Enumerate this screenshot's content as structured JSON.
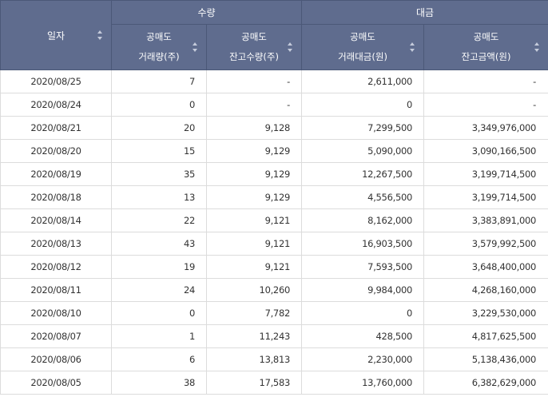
{
  "header": {
    "date_label": "일자",
    "group_qty": "수량",
    "group_amount": "대금",
    "col_volume": [
      "공매도",
      "거래량(주)"
    ],
    "col_balance_qty": [
      "공매도",
      "잔고수량(주)"
    ],
    "col_trade_amount": [
      "공매도",
      "거래대금(원)"
    ],
    "col_balance_amount": [
      "공매도",
      "잔고금액(원)"
    ]
  },
  "rows": [
    {
      "date": "2020/08/25",
      "volume": "7",
      "balance_qty": "-",
      "trade_amount": "2,611,000",
      "balance_amount": "-"
    },
    {
      "date": "2020/08/24",
      "volume": "0",
      "balance_qty": "-",
      "trade_amount": "0",
      "balance_amount": "-"
    },
    {
      "date": "2020/08/21",
      "volume": "20",
      "balance_qty": "9,128",
      "trade_amount": "7,299,500",
      "balance_amount": "3,349,976,000"
    },
    {
      "date": "2020/08/20",
      "volume": "15",
      "balance_qty": "9,129",
      "trade_amount": "5,090,000",
      "balance_amount": "3,090,166,500"
    },
    {
      "date": "2020/08/19",
      "volume": "35",
      "balance_qty": "9,129",
      "trade_amount": "12,267,500",
      "balance_amount": "3,199,714,500"
    },
    {
      "date": "2020/08/18",
      "volume": "13",
      "balance_qty": "9,129",
      "trade_amount": "4,556,500",
      "balance_amount": "3,199,714,500"
    },
    {
      "date": "2020/08/14",
      "volume": "22",
      "balance_qty": "9,121",
      "trade_amount": "8,162,000",
      "balance_amount": "3,383,891,000"
    },
    {
      "date": "2020/08/13",
      "volume": "43",
      "balance_qty": "9,121",
      "trade_amount": "16,903,500",
      "balance_amount": "3,579,992,500"
    },
    {
      "date": "2020/08/12",
      "volume": "19",
      "balance_qty": "9,121",
      "trade_amount": "7,593,500",
      "balance_amount": "3,648,400,000"
    },
    {
      "date": "2020/08/11",
      "volume": "24",
      "balance_qty": "10,260",
      "trade_amount": "9,984,000",
      "balance_amount": "4,268,160,000"
    },
    {
      "date": "2020/08/10",
      "volume": "0",
      "balance_qty": "7,782",
      "trade_amount": "0",
      "balance_amount": "3,229,530,000"
    },
    {
      "date": "2020/08/07",
      "volume": "1",
      "balance_qty": "11,243",
      "trade_amount": "428,500",
      "balance_amount": "4,817,625,500"
    },
    {
      "date": "2020/08/06",
      "volume": "6",
      "balance_qty": "13,813",
      "trade_amount": "2,230,000",
      "balance_amount": "5,138,436,000"
    },
    {
      "date": "2020/08/05",
      "volume": "38",
      "balance_qty": "17,583",
      "trade_amount": "13,760,000",
      "balance_amount": "6,382,629,000"
    }
  ],
  "icons": {
    "sort": "sort-updown-icon"
  },
  "colors": {
    "header_bg": "#5f6c8e",
    "header_text": "#ffffff",
    "row_border": "#dcdcdc"
  }
}
